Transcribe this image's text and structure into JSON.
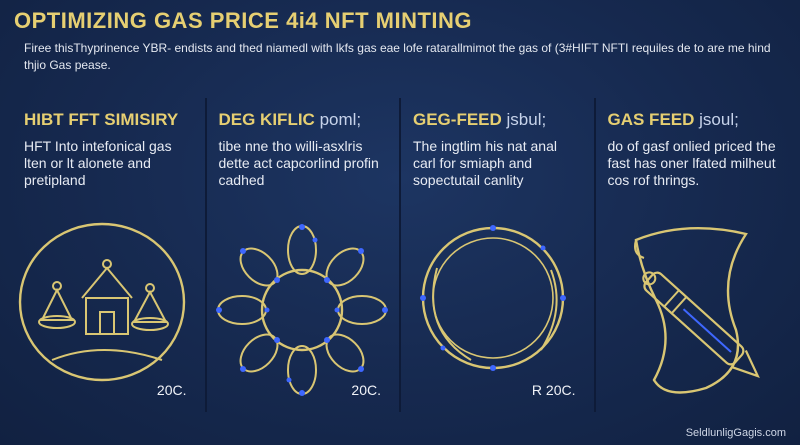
{
  "header": {
    "title": "OPTIMIZING GAS PRICE 4i4 NFT MINTING",
    "subtitle": "Firee thisThyprinence YBR- endists and thed niamedl with lkfs gas eae lofe ratarallmimot the gas of (3#HIFT NFTI requiles de to are me hind thjio Gas pease."
  },
  "panels": [
    {
      "title": "HIBT FFT SIMISIRY",
      "title_accent": "",
      "text": "HFT Into intefonical gas lten or lt alonete and pretipland",
      "value": "20C.",
      "icon": "boats-icon"
    },
    {
      "title": "DEG KIFLIC",
      "title_accent": "poml;",
      "text": "tibe nne tho willi-asxlris dette act capcorlind profin cadhed",
      "value": "20C.",
      "icon": "network-icon"
    },
    {
      "title": "GEG-FEED",
      "title_accent": "jsbul;",
      "text": "The ingtlim his nat anal carl for smiaph and sopectutail canlity",
      "value": "R 20C.",
      "icon": "ring-icon"
    },
    {
      "title": "GAS FEED",
      "title_accent": "jsoul;",
      "text": "do of gasf onlied priced the fast has oner lfated milheut cos rof thrings.",
      "value": "",
      "icon": "pen-icon"
    }
  ],
  "footer": {
    "watermark": "SeldlunligGagis.com"
  },
  "colors": {
    "background": "#16294f",
    "gold": "#e6cf72",
    "accent_blue": "#3e67ff"
  }
}
